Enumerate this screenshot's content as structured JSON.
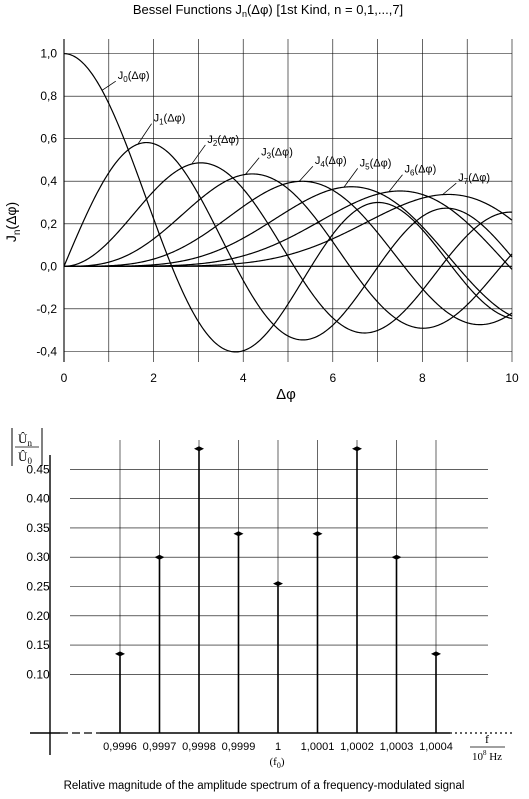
{
  "chart_data": [
    {
      "type": "line",
      "title": "Bessel Functions J",
      "title_sub": "n",
      "title_rest": "(Δφ)  [1st Kind, n = 0,1,...,7]",
      "xlabel": "Δφ",
      "ylabel_main": "J",
      "ylabel_sub": "n",
      "ylabel_rest": "(Δφ)",
      "xlim": [
        0,
        10
      ],
      "ylim": [
        -0.45,
        1.05
      ],
      "x_ticks": [
        0,
        2,
        4,
        6,
        8,
        10
      ],
      "x_tick_labels": [
        "0",
        "2",
        "4",
        "6",
        "8",
        "10"
      ],
      "y_ticks": [
        1.0,
        0.8,
        0.6,
        0.4,
        0.2,
        0.0,
        -0.2,
        -0.4
      ],
      "y_tick_labels": [
        "1,0",
        "0,8",
        "0,6",
        "0,4",
        "0,2",
        "0,0",
        "-0,2",
        "-0,4"
      ],
      "grid": true,
      "series": [
        {
          "name": "J0(Δφ)",
          "order": 0,
          "label_x": 1.2,
          "label_y": 0.88,
          "label_main": "J",
          "label_sub": "0",
          "label_rest": "(Δφ)"
        },
        {
          "name": "J1(Δφ)",
          "order": 1,
          "label_x": 2.0,
          "label_y": 0.68,
          "label_main": "J",
          "label_sub": "1",
          "label_rest": "(Δφ)"
        },
        {
          "name": "J2(Δφ)",
          "order": 2,
          "label_x": 3.2,
          "label_y": 0.58,
          "label_main": "J",
          "label_sub": "2",
          "label_rest": "(Δφ)"
        },
        {
          "name": "J3(Δφ)",
          "order": 3,
          "label_x": 4.4,
          "label_y": 0.52,
          "label_main": "J",
          "label_sub": "3",
          "label_rest": "(Δφ)"
        },
        {
          "name": "J4(Δφ)",
          "order": 4,
          "label_x": 5.6,
          "label_y": 0.48,
          "label_main": "J",
          "label_sub": "4",
          "label_rest": "(Δφ)"
        },
        {
          "name": "J5(Δφ)",
          "order": 5,
          "label_x": 6.6,
          "label_y": 0.47,
          "label_main": "J",
          "label_sub": "5",
          "label_rest": "(Δφ)"
        },
        {
          "name": "J6(Δφ)",
          "order": 6,
          "label_x": 7.6,
          "label_y": 0.44,
          "label_main": "J",
          "label_sub": "6",
          "label_rest": "(Δφ)"
        },
        {
          "name": "J7(Δφ)",
          "order": 7,
          "label_x": 8.8,
          "label_y": 0.4,
          "label_main": "J",
          "label_sub": "7",
          "label_rest": "(Δφ)"
        }
      ],
      "line_color": "#000000",
      "grid_color": "#000000"
    },
    {
      "type": "bar",
      "subtype": "stem",
      "ylabel_num": "Û",
      "ylabel_num_sub": "n",
      "ylabel_den": "Û",
      "ylabel_den_sub": "0",
      "xlabel_num": "f",
      "xlabel_den": "10",
      "xlabel_den_exp": "8",
      "xlabel_den_unit": " Hz",
      "categories": [
        "0,9996",
        "0,9997",
        "0,9998",
        "0,9999",
        "1",
        "1,0001",
        "1,0002",
        "1,0003",
        "1,0004"
      ],
      "center_note": "(f",
      "center_note_sub": "0",
      "center_note_end": ")",
      "values": [
        0.135,
        0.3,
        0.485,
        0.34,
        0.255,
        0.34,
        0.485,
        0.3,
        0.135
      ],
      "ylim": [
        0,
        0.5
      ],
      "y_ticks": [
        0.45,
        0.4,
        0.35,
        0.3,
        0.25,
        0.2,
        0.15,
        0.1
      ],
      "y_tick_labels": [
        "0.45",
        "0.40",
        "0.35",
        "0.30",
        "0.25",
        "0.20",
        "0.15",
        "0.10"
      ],
      "grid": true,
      "caption": "Relative magnitude of the amplitude spectrum of a frequency-modulated signal"
    }
  ]
}
